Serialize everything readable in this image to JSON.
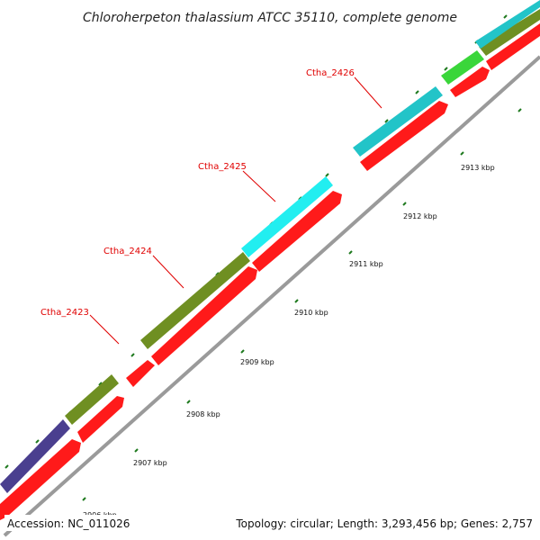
{
  "title": "Chloroherpeton thalassium ATCC 35110, complete genome",
  "footer": {
    "accession": "Accession: NC_011026",
    "summary": "Topology: circular; Length: 3,293,456 bp; Genes: 2,757"
  },
  "gene_labels": [
    "Ctha_2423",
    "Ctha_2424",
    "Ctha_2425",
    "Ctha_2426"
  ],
  "kbp_ticks": [
    "2906 kbp",
    "2907 kbp",
    "2908 kbp",
    "2909 kbp",
    "2910 kbp",
    "2911 kbp",
    "2912 kbp",
    "2913 kbp"
  ],
  "colors": {
    "cds_red": "#ff1a1a",
    "gene_navy": "#4a3f8f",
    "gene_olive": "#6f8f22",
    "gene_cyan": "#22c4c8",
    "gene_bright_cyan": "#22eef0",
    "gene_green": "#3ad63a",
    "backbone": "#888888",
    "tick_green": "#1f7a1f",
    "label_red": "#e00000"
  }
}
